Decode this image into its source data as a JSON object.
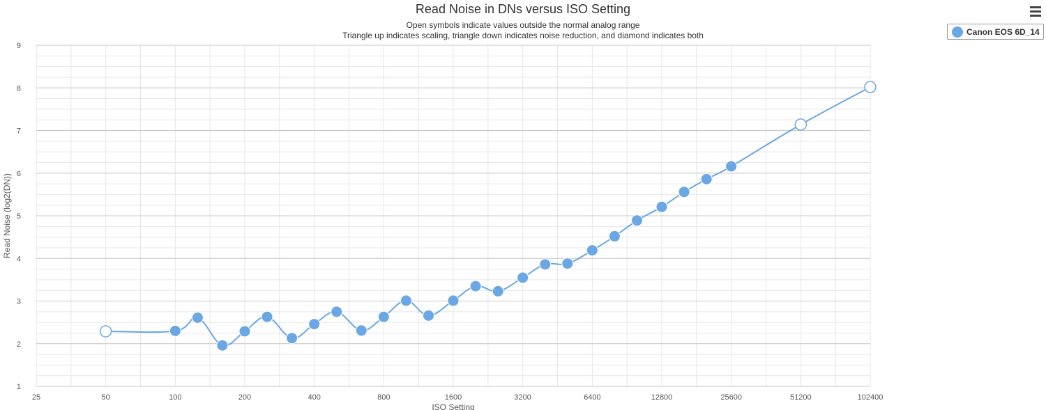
{
  "ui": {
    "menu_label": "Chart context menu"
  },
  "chart_data": {
    "type": "line",
    "title": "Read Noise in DNs versus ISO Setting",
    "subtitle_lines": [
      "Open symbols indicate values outside the normal analog range",
      "Triangle up indicates scaling, triangle down indicates noise reduction, and diamond indicates both"
    ],
    "xlabel": "ISO Setting",
    "ylabel": "Read Noise (log2(DN))",
    "x_scale": "log2",
    "xlim": [
      25,
      102400
    ],
    "ylim": [
      1,
      9
    ],
    "x_ticks": [
      25,
      50,
      100,
      200,
      400,
      800,
      1600,
      3200,
      6400,
      12800,
      25600,
      51200,
      102400
    ],
    "x_tick_labels": [
      "25",
      "50",
      "100",
      "200",
      "400",
      "800",
      "1600",
      "3200",
      "6400",
      "12800",
      "25600",
      "51200",
      "102400"
    ],
    "y_ticks": [
      1,
      2,
      3,
      4,
      5,
      6,
      7,
      8,
      9
    ],
    "y_tick_labels": [
      "1",
      "2",
      "3",
      "4",
      "5",
      "6",
      "7",
      "8",
      "9"
    ],
    "grid": true,
    "legend_position": "top-right",
    "series": [
      {
        "name": "Canon EOS 6D_14",
        "color": "#6aa7e6",
        "points": [
          {
            "x": 50,
            "y": 2.29,
            "open": true
          },
          {
            "x": 100,
            "y": 2.3,
            "open": false
          },
          {
            "x": 125,
            "y": 2.61,
            "open": false
          },
          {
            "x": 160,
            "y": 1.96,
            "open": false
          },
          {
            "x": 200,
            "y": 2.29,
            "open": false
          },
          {
            "x": 250,
            "y": 2.63,
            "open": false
          },
          {
            "x": 320,
            "y": 2.13,
            "open": false
          },
          {
            "x": 400,
            "y": 2.46,
            "open": false
          },
          {
            "x": 500,
            "y": 2.75,
            "open": false
          },
          {
            "x": 640,
            "y": 2.31,
            "open": false
          },
          {
            "x": 800,
            "y": 2.63,
            "open": false
          },
          {
            "x": 1000,
            "y": 3.01,
            "open": false
          },
          {
            "x": 1250,
            "y": 2.66,
            "open": false
          },
          {
            "x": 1600,
            "y": 3.01,
            "open": false
          },
          {
            "x": 2000,
            "y": 3.35,
            "open": false
          },
          {
            "x": 2500,
            "y": 3.23,
            "open": false
          },
          {
            "x": 3200,
            "y": 3.55,
            "open": false
          },
          {
            "x": 4000,
            "y": 3.86,
            "open": false
          },
          {
            "x": 5000,
            "y": 3.88,
            "open": false
          },
          {
            "x": 6400,
            "y": 4.19,
            "open": false
          },
          {
            "x": 8000,
            "y": 4.52,
            "open": false
          },
          {
            "x": 10000,
            "y": 4.89,
            "open": false
          },
          {
            "x": 12800,
            "y": 5.21,
            "open": false
          },
          {
            "x": 16000,
            "y": 5.56,
            "open": false
          },
          {
            "x": 20000,
            "y": 5.86,
            "open": false
          },
          {
            "x": 25600,
            "y": 6.16,
            "open": false
          },
          {
            "x": 51200,
            "y": 7.14,
            "open": true
          },
          {
            "x": 102400,
            "y": 8.02,
            "open": true
          }
        ]
      }
    ]
  }
}
